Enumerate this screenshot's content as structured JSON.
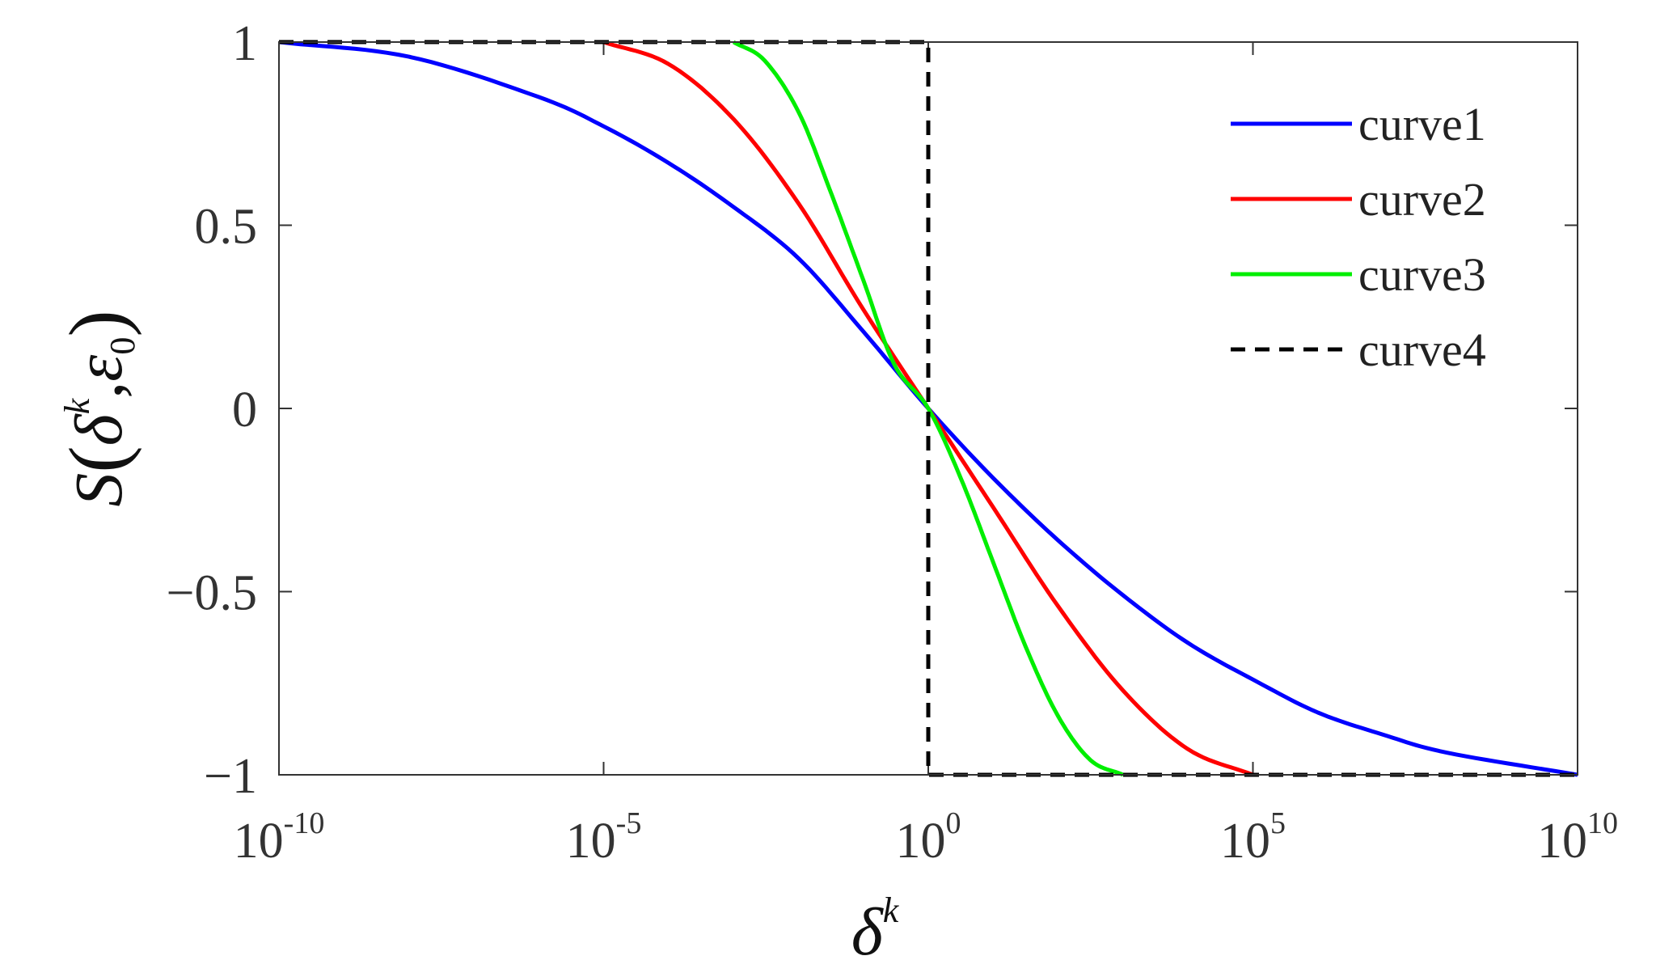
{
  "chart_data": {
    "type": "line",
    "xscale": "log",
    "xlim": [
      1e-10,
      10000000000.0
    ],
    "ylim": [
      -1,
      1
    ],
    "xticks": [
      1e-10,
      1e-05,
      1,
      100000.0,
      10000000000.0
    ],
    "xtick_labels": [
      {
        "base": "10",
        "exp": "-10"
      },
      {
        "base": "10",
        "exp": "-5"
      },
      {
        "base": "10",
        "exp": "0"
      },
      {
        "base": "10",
        "exp": "5"
      },
      {
        "base": "10",
        "exp": "10"
      }
    ],
    "yticks": [
      1,
      0.5,
      0,
      -0.5,
      -1
    ],
    "ytick_labels": [
      "1",
      "0.5",
      "0",
      "−0.5",
      "−1"
    ],
    "xlabel": {
      "base": "δ",
      "sup": "k"
    },
    "ylabel": {
      "fn": "S",
      "lparen": "(",
      "arg1": "δ",
      "arg1_sup": "k",
      "sep": ",",
      "arg2": "ε",
      "arg2_sub": "0",
      "rparen": ")"
    },
    "grid": false,
    "legend_position": "top-right",
    "series": [
      {
        "name": "curve1",
        "color": "#0000ff",
        "style": "solid",
        "x": [
          1e-10,
          1e-08,
          1e-06,
          1e-05,
          0.0001,
          0.001,
          0.01,
          0.1,
          1,
          10,
          100,
          1000.0,
          10000.0,
          100000.0,
          1000000.0,
          10000000.0,
          100000000.0,
          10000000000.0
        ],
        "y": [
          1,
          0.96,
          0.85,
          0.77,
          0.67,
          0.55,
          0.41,
          0.21,
          0,
          -0.19,
          -0.36,
          -0.51,
          -0.64,
          -0.74,
          -0.83,
          -0.89,
          -0.94,
          -1
        ]
      },
      {
        "name": "curve2",
        "color": "#ff0000",
        "style": "solid",
        "x": [
          1e-05,
          0.0001,
          0.001,
          0.01,
          0.1,
          1,
          10,
          100,
          1000.0,
          10000.0,
          100000.0
        ],
        "y": [
          1,
          0.94,
          0.79,
          0.56,
          0.27,
          0,
          -0.27,
          -0.54,
          -0.77,
          -0.93,
          -1
        ]
      },
      {
        "name": "curve3",
        "color": "#00ee00",
        "style": "solid",
        "x": [
          0.001,
          0.003,
          0.01,
          0.03,
          0.1,
          0.3,
          1,
          3.16,
          10,
          31.6,
          100,
          316,
          1000
        ],
        "y": [
          1,
          0.95,
          0.81,
          0.6,
          0.35,
          0.12,
          0,
          -0.19,
          -0.42,
          -0.65,
          -0.84,
          -0.96,
          -1
        ]
      },
      {
        "name": "curve4",
        "color": "#000000",
        "style": "dashed",
        "x": [
          1e-10,
          1,
          1,
          10000000000.0
        ],
        "y": [
          1,
          1,
          -1,
          -1
        ]
      }
    ]
  }
}
